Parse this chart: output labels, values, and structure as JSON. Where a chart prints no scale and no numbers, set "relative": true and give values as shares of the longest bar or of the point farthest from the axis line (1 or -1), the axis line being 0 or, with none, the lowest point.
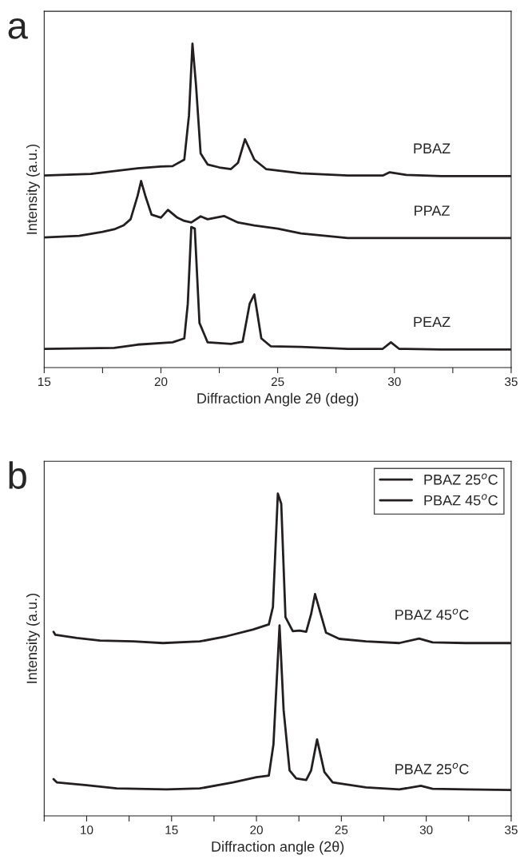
{
  "chart_data": [
    {
      "type": "line",
      "relative": true,
      "xlabel": "Diffraction Angle 2θ (deg)",
      "ylabel": "Intensity (a.u.)",
      "annotations": [
        "a"
      ],
      "xlim": [
        15,
        35
      ],
      "xticks": [
        15,
        {
          "value": 17.5,
          "label": null
        },
        20,
        {
          "value": 22.5,
          "label": null
        },
        25,
        {
          "value": 27.5,
          "label": null
        },
        30,
        {
          "value": 32.5,
          "label": null
        },
        35
      ],
      "tick_labels": "x",
      "legend": false,
      "grid": false,
      "marker": "none",
      "line_style": "solid",
      "series": [
        {
          "name": "PBAZ",
          "color": "#231f20",
          "x": [
            15,
            17,
            19,
            20,
            20.5,
            21.0,
            21.2,
            21.35,
            21.5,
            21.7,
            22,
            22.5,
            23,
            23.3,
            23.6,
            24,
            24.5,
            26,
            28,
            29.5,
            29.8,
            30.5,
            32,
            35
          ],
          "values": [
            0.593,
            0.598,
            0.615,
            0.621,
            0.622,
            0.642,
            0.778,
            1.0,
            0.874,
            0.661,
            0.627,
            0.618,
            0.613,
            0.632,
            0.705,
            0.642,
            0.613,
            0.6,
            0.593,
            0.593,
            0.603,
            0.595,
            0.591,
            0.591
          ]
        },
        {
          "name": "PPAZ",
          "color": "#231f20",
          "x": [
            15,
            16.5,
            17.5,
            18,
            18.4,
            18.7,
            19.0,
            19.15,
            19.35,
            19.6,
            20,
            20.3,
            20.7,
            21,
            21.3,
            21.7,
            22,
            22.7,
            23.3,
            24,
            25,
            26,
            28,
            30,
            35
          ],
          "values": [
            0.402,
            0.407,
            0.419,
            0.427,
            0.439,
            0.458,
            0.53,
            0.576,
            0.526,
            0.472,
            0.463,
            0.487,
            0.463,
            0.453,
            0.448,
            0.467,
            0.458,
            0.468,
            0.448,
            0.439,
            0.429,
            0.414,
            0.4,
            0.4,
            0.4
          ]
        },
        {
          "name": "PEAZ",
          "color": "#231f20",
          "x": [
            15,
            18,
            19,
            20.5,
            21.0,
            21.15,
            21.3,
            21.45,
            21.65,
            22,
            23,
            23.5,
            23.8,
            24.0,
            24.3,
            24.7,
            26,
            28,
            29.5,
            29.85,
            30.2,
            32,
            35
          ],
          "values": [
            0.058,
            0.061,
            0.071,
            0.078,
            0.09,
            0.197,
            0.434,
            0.429,
            0.138,
            0.078,
            0.073,
            0.08,
            0.197,
            0.226,
            0.09,
            0.066,
            0.064,
            0.058,
            0.058,
            0.078,
            0.058,
            0.056,
            0.056
          ]
        }
      ]
    },
    {
      "type": "line",
      "relative": true,
      "xlabel": "Diffraction angle (2θ)",
      "ylabel": "Intensity (a.u.)",
      "annotations": [
        "b"
      ],
      "xlim": [
        7.5,
        35
      ],
      "xticks": [
        {
          "value": 7.5,
          "label": null
        },
        10,
        {
          "value": 12.5,
          "label": null
        },
        15,
        {
          "value": 17.5,
          "label": null
        },
        20,
        {
          "value": 22.5,
          "label": null
        },
        25,
        {
          "value": 27.5,
          "label": null
        },
        30,
        {
          "value": 32.5,
          "label": null
        },
        35
      ],
      "tick_labels": "x",
      "legend": "top right",
      "grid": false,
      "marker": "none",
      "line_style": "solid",
      "series": [
        {
          "name": "PBAZ 25$^{o}$C",
          "color": "#231f20",
          "x": [
            8.05,
            8.24,
            10,
            11.77,
            14.7,
            16.66,
            18.62,
            20,
            20.73,
            21.0,
            21.36,
            21.6,
            21.95,
            22.34,
            22.93,
            23.22,
            23.57,
            24.0,
            24.49,
            26.45,
            28.41,
            29.68,
            30.37,
            32.32,
            35
          ],
          "values": [
            0.114,
            0.104,
            0.095,
            0.085,
            0.082,
            0.085,
            0.104,
            0.12,
            0.125,
            0.221,
            0.591,
            0.328,
            0.141,
            0.116,
            0.111,
            0.141,
            0.237,
            0.136,
            0.104,
            0.088,
            0.082,
            0.093,
            0.084,
            0.082,
            0.08
          ]
        },
        {
          "name": "PBAZ 45$^{o}$C",
          "color": "#231f20",
          "x": [
            8.05,
            8.15,
            9.42,
            10.79,
            12.75,
            14.5,
            16.66,
            18.23,
            19.79,
            20.73,
            20.97,
            21.26,
            21.46,
            21.71,
            22.14,
            22.53,
            22.93,
            23.22,
            23.45,
            24.1,
            24.88,
            26.45,
            28.41,
            29.58,
            30.37,
            32.32,
            35
          ],
          "values": [
            0.571,
            0.562,
            0.552,
            0.544,
            0.541,
            0.536,
            0.541,
            0.557,
            0.578,
            0.594,
            0.648,
            1.0,
            0.968,
            0.616,
            0.573,
            0.575,
            0.571,
            0.626,
            0.688,
            0.568,
            0.549,
            0.541,
            0.536,
            0.55,
            0.538,
            0.536,
            0.536
          ]
        }
      ]
    }
  ]
}
